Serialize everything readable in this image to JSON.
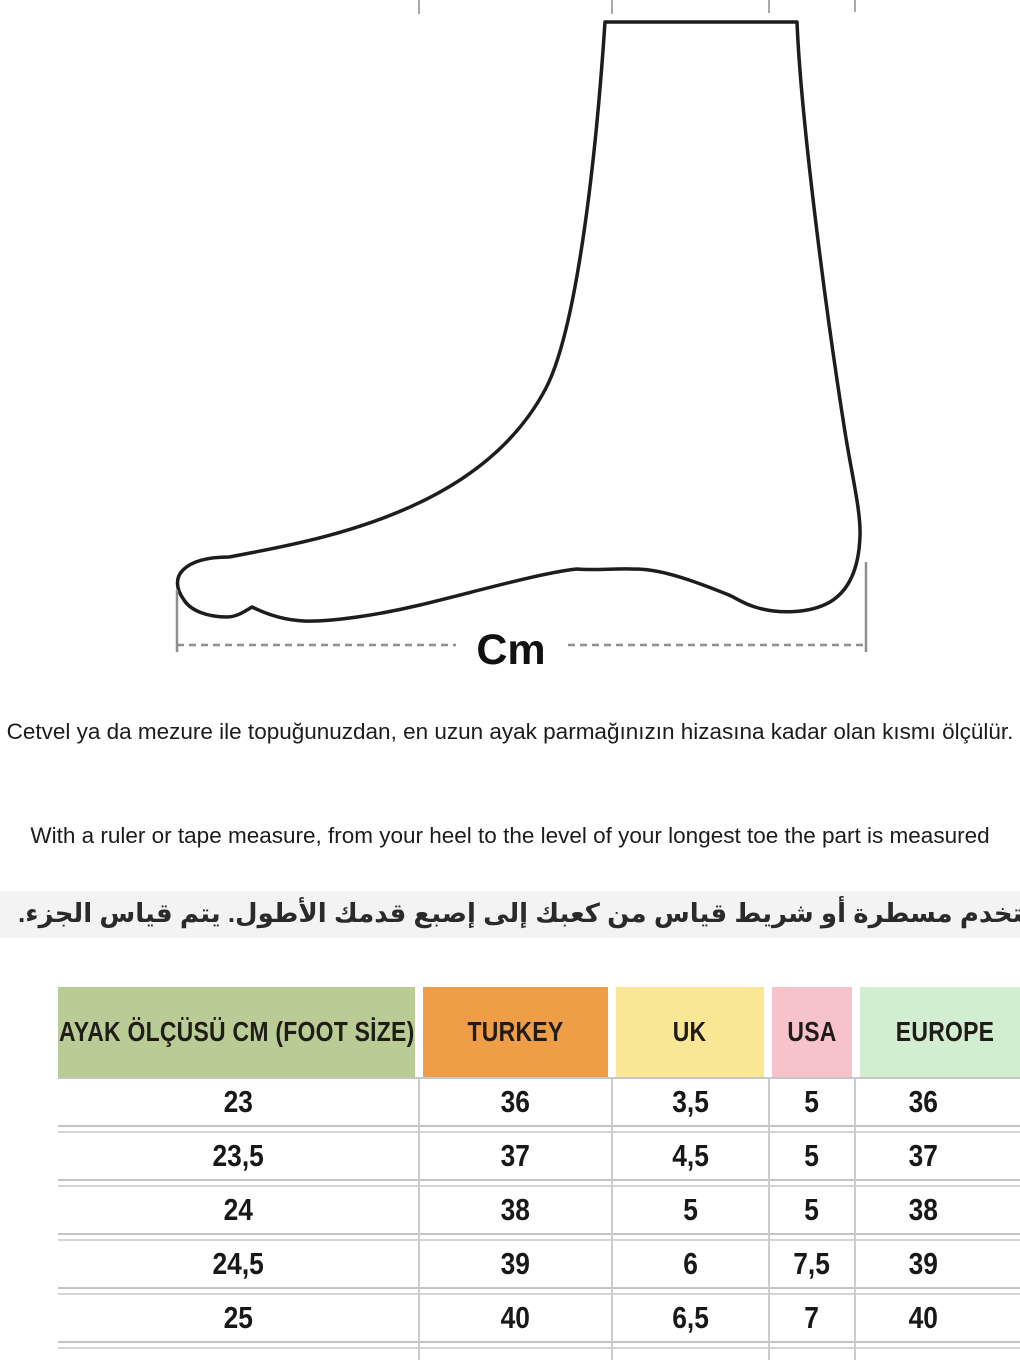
{
  "diagram": {
    "cm_label": "Cm"
  },
  "instructions": {
    "turkish": "Cetvel ya da mezure ile topuğunuzdan, en uzun ayak parmağınızın hizasına kadar olan kısmı ölçülür.",
    "english": "With a ruler or tape measure, from your heel to the level of your longest toe the part is measured",
    "arabic": "استخدم مسطرة أو شريط قياس من كعبك إلى إصبع قدمك الأطول.  يتم قياس الجزء."
  },
  "table": {
    "headers": [
      {
        "label": "AYAK ÖLÇÜSÜ CM (FOOT SİZE)",
        "bg": "#b9cc95"
      },
      {
        "label": "TURKEY",
        "bg": "#ef9d47"
      },
      {
        "label": "UK",
        "bg": "#fae795"
      },
      {
        "label": "USA",
        "bg": "#f6c3ca"
      },
      {
        "label": "EUROPE",
        "bg": "#d2eed0"
      }
    ],
    "rows": [
      [
        "23",
        "36",
        "3,5",
        "5",
        "36"
      ],
      [
        "23,5",
        "37",
        "4,5",
        "5",
        "37"
      ],
      [
        "24",
        "38",
        "5",
        "5",
        "38"
      ],
      [
        "24,5",
        "39",
        "6",
        "7,5",
        "39"
      ],
      [
        "25",
        "40",
        "6,5",
        "7",
        "40"
      ]
    ]
  }
}
